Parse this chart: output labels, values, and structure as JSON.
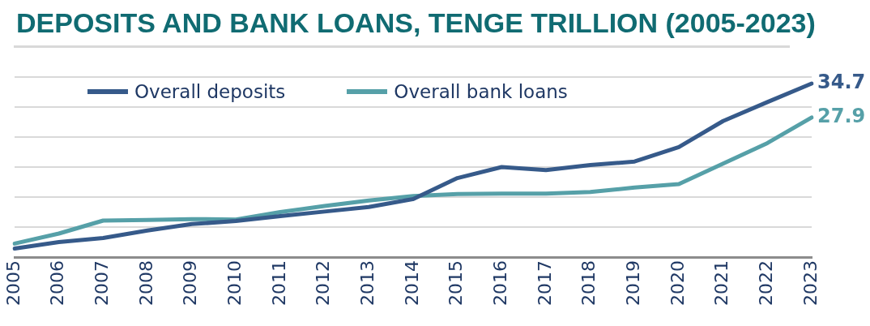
{
  "chart_data": {
    "type": "line",
    "title": "DEPOSITS AND BANK LOANS, TENGE TRILLION (2005-2023)",
    "categories": [
      "2005",
      "2006",
      "2007",
      "2008",
      "2009",
      "2010",
      "2011",
      "2012",
      "2013",
      "2014",
      "2015",
      "2016",
      "2017",
      "2018",
      "2019",
      "2020",
      "2021",
      "2022",
      "2023"
    ],
    "series": [
      {
        "name": "Overall deposits",
        "color": "#365a8a",
        "values": [
          1.7,
          3.0,
          3.8,
          5.3,
          6.6,
          7.2,
          8.2,
          9.1,
          10.0,
          11.6,
          15.8,
          18.0,
          17.4,
          18.4,
          19.1,
          22.0,
          27.2,
          31.0,
          34.7
        ],
        "value_labels": [
          null,
          null,
          null,
          null,
          null,
          null,
          null,
          null,
          null,
          null,
          null,
          null,
          null,
          null,
          null,
          null,
          null,
          null,
          "34.7"
        ]
      },
      {
        "name": "Overall bank loans",
        "color": "#56a0a8",
        "values": [
          2.7,
          4.7,
          7.3,
          7.4,
          7.6,
          7.5,
          9.0,
          10.2,
          11.3,
          12.2,
          12.6,
          12.7,
          12.7,
          13.0,
          13.9,
          14.6,
          18.7,
          22.8,
          27.9
        ],
        "value_labels": [
          null,
          null,
          null,
          null,
          null,
          null,
          null,
          null,
          null,
          null,
          null,
          null,
          null,
          null,
          null,
          null,
          null,
          null,
          "27.9"
        ]
      }
    ],
    "ylim": [
      0,
      36
    ],
    "yticks": [
      {
        "value": 0,
        "label": null
      },
      {
        "value": 6,
        "label": null
      },
      {
        "value": 12,
        "label": null
      },
      {
        "value": 18,
        "label": null
      },
      {
        "value": 24,
        "label": null
      },
      {
        "value": 30,
        "label": null
      },
      {
        "value": 36,
        "label": null
      }
    ],
    "tick_labels": "x",
    "grid": "y",
    "legend": "top left",
    "marker": "none"
  }
}
